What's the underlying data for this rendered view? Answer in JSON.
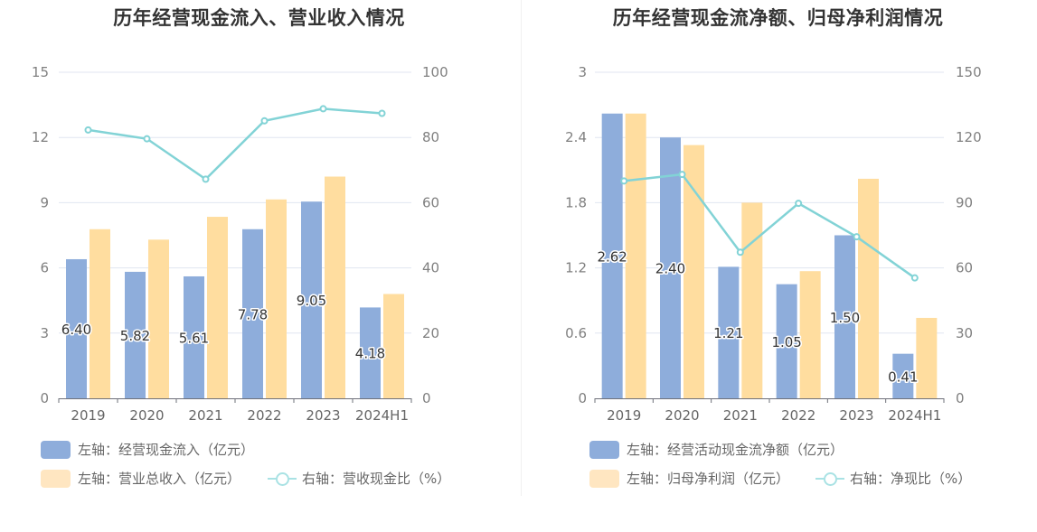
{
  "charts": [
    {
      "title": "历年经营现金流入、营业收入情况",
      "legend": [
        {
          "label": "左轴：经营现金流入（亿元）",
          "color": "#8eaddb",
          "kind": "bar"
        },
        {
          "label": "左轴：营业总收入（亿元）",
          "color": "#ffe6c1",
          "kind": "bar"
        },
        {
          "label": "右轴：营收现金比（%）",
          "color": "#a9e2e4",
          "kind": "line"
        }
      ]
    },
    {
      "title": "历年经营现金流净额、归母净利润情况",
      "legend": [
        {
          "label": "左轴：经营活动现金流净额（亿元）",
          "color": "#8eaddb",
          "kind": "bar"
        },
        {
          "label": "左轴：归母净利润（亿元）",
          "color": "#ffe6c1",
          "kind": "bar"
        },
        {
          "label": "右轴：净现比（%）",
          "color": "#a9e2e4",
          "kind": "line"
        }
      ]
    }
  ],
  "chart_data": [
    {
      "type": "bar",
      "title": "历年经营现金流入、营业收入情况",
      "categories": [
        "2019",
        "2020",
        "2021",
        "2022",
        "2023",
        "2024H1"
      ],
      "y_left": {
        "min": 0,
        "max": 15,
        "ticks": [
          "0",
          "3",
          "6",
          "9",
          "12",
          "15"
        ]
      },
      "y_right": {
        "min": 0,
        "max": 100,
        "ticks": [
          "0",
          "20",
          "40",
          "60",
          "80",
          "100"
        ]
      },
      "grid": true,
      "legend_position": "bottom-left",
      "series": [
        {
          "name": "经营现金流入（亿元）",
          "axis": "left",
          "type": "bar",
          "color": "#8eaddb",
          "values": [
            6.4,
            5.82,
            5.61,
            7.78,
            9.05,
            4.18
          ],
          "labels": [
            "6.40",
            "5.82",
            "5.61",
            "7.78",
            "9.05",
            "4.18"
          ]
        },
        {
          "name": "营业总收入（亿元）",
          "axis": "left",
          "type": "bar",
          "color": "#ffdd9f",
          "values": [
            7.78,
            7.3,
            8.35,
            9.15,
            10.2,
            4.8
          ]
        },
        {
          "name": "营收现金比（%）",
          "axis": "right",
          "type": "line",
          "color": "#82d3d6",
          "values": [
            82.3,
            79.6,
            67.2,
            85.1,
            88.8,
            87.4
          ]
        }
      ]
    },
    {
      "type": "bar",
      "title": "历年经营现金流净额、归母净利润情况",
      "categories": [
        "2019",
        "2020",
        "2021",
        "2022",
        "2023",
        "2024H1"
      ],
      "y_left": {
        "min": 0,
        "max": 3,
        "ticks": [
          "0",
          "0.6",
          "1.2",
          "1.8",
          "2.4",
          "3"
        ]
      },
      "y_right": {
        "min": 0,
        "max": 150,
        "ticks": [
          "0",
          "30",
          "60",
          "90",
          "120",
          "150"
        ]
      },
      "grid": true,
      "legend_position": "bottom-left",
      "series": [
        {
          "name": "经营活动现金流净额（亿元）",
          "axis": "left",
          "type": "bar",
          "color": "#8eaddb",
          "values": [
            2.62,
            2.4,
            1.21,
            1.05,
            1.5,
            0.41
          ],
          "labels": [
            "2.62",
            "2.40",
            "1.21",
            "1.05",
            "1.50",
            "0.41"
          ]
        },
        {
          "name": "归母净利润（亿元）",
          "axis": "left",
          "type": "bar",
          "color": "#ffdd9f",
          "values": [
            2.62,
            2.33,
            1.8,
            1.17,
            2.02,
            0.74
          ]
        },
        {
          "name": "净现比（%）",
          "axis": "right",
          "type": "line",
          "color": "#82d3d6",
          "values": [
            100.0,
            103.0,
            67.2,
            89.7,
            74.3,
            55.4
          ]
        }
      ]
    }
  ]
}
